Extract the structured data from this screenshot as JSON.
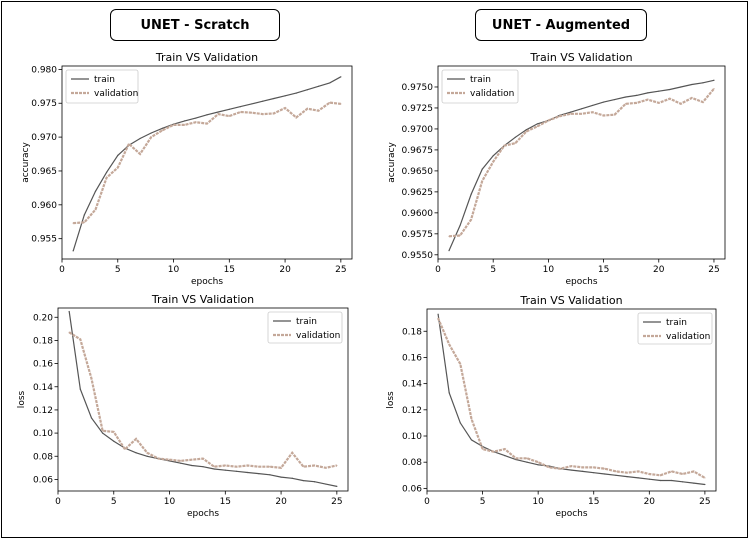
{
  "headers": {
    "left": "UNET - Scratch",
    "right": "UNET - Augmented"
  },
  "colors": {
    "train": "#555555",
    "validation": "#c4a899"
  },
  "chart_data": [
    {
      "id": "scratch-accuracy",
      "type": "line",
      "title": "Train VS Validation",
      "xlabel": "epochs",
      "ylabel": "accuracy",
      "xlim": [
        0,
        26
      ],
      "ylim": [
        0.952,
        0.9805
      ],
      "xticks": [
        0,
        5,
        10,
        15,
        20,
        25
      ],
      "yticks": [
        0.955,
        0.96,
        0.965,
        0.97,
        0.975,
        0.98
      ],
      "ytick_labels": [
        "0.955",
        "0.960",
        "0.965",
        "0.970",
        "0.975",
        "0.980"
      ],
      "legend": "top-left",
      "x": [
        1,
        2,
        3,
        4,
        5,
        6,
        7,
        8,
        9,
        10,
        11,
        12,
        13,
        14,
        15,
        16,
        17,
        18,
        19,
        20,
        21,
        22,
        23,
        24,
        25
      ],
      "series": [
        {
          "name": "train",
          "values": [
            0.9532,
            0.9585,
            0.962,
            0.9648,
            0.9673,
            0.9688,
            0.9698,
            0.9706,
            0.9713,
            0.9719,
            0.9724,
            0.9728,
            0.9733,
            0.9737,
            0.9741,
            0.9745,
            0.9749,
            0.9753,
            0.9757,
            0.9761,
            0.9765,
            0.977,
            0.9775,
            0.978,
            0.9789
          ]
        },
        {
          "name": "validation",
          "values": [
            0.9573,
            0.9574,
            0.9593,
            0.964,
            0.9655,
            0.969,
            0.9675,
            0.97,
            0.971,
            0.9718,
            0.9718,
            0.9722,
            0.972,
            0.9734,
            0.9731,
            0.9737,
            0.9736,
            0.9734,
            0.9735,
            0.9743,
            0.9729,
            0.9742,
            0.9739,
            0.9751,
            0.9749
          ]
        }
      ]
    },
    {
      "id": "augmented-accuracy",
      "type": "line",
      "title": "Train VS Validation",
      "xlabel": "epochs",
      "ylabel": "accuracy",
      "xlim": [
        0,
        26
      ],
      "ylim": [
        0.9545,
        0.9775
      ],
      "xticks": [
        0,
        5,
        10,
        15,
        20,
        25
      ],
      "yticks": [
        0.955,
        0.9575,
        0.96,
        0.9625,
        0.965,
        0.9675,
        0.97,
        0.9725,
        0.975
      ],
      "ytick_labels": [
        "0.9550",
        "0.9575",
        "0.9600",
        "0.9625",
        "0.9650",
        "0.9675",
        "0.9700",
        "0.9725",
        "0.9750"
      ],
      "legend": "top-left",
      "x": [
        1,
        2,
        3,
        4,
        5,
        6,
        7,
        8,
        9,
        10,
        11,
        12,
        13,
        14,
        15,
        16,
        17,
        18,
        19,
        20,
        21,
        22,
        23,
        24,
        25
      ],
      "series": [
        {
          "name": "train",
          "values": [
            0.9555,
            0.9585,
            0.9622,
            0.9652,
            0.9668,
            0.968,
            0.969,
            0.9699,
            0.9706,
            0.971,
            0.9716,
            0.972,
            0.9724,
            0.9728,
            0.9732,
            0.9735,
            0.9738,
            0.974,
            0.9743,
            0.9745,
            0.9747,
            0.975,
            0.9753,
            0.9755,
            0.9758
          ]
        },
        {
          "name": "validation",
          "values": [
            0.9572,
            0.9573,
            0.9592,
            0.9638,
            0.9661,
            0.968,
            0.9683,
            0.9697,
            0.9703,
            0.971,
            0.9715,
            0.9718,
            0.9718,
            0.972,
            0.9716,
            0.9717,
            0.973,
            0.9731,
            0.9735,
            0.9731,
            0.9736,
            0.973,
            0.9737,
            0.9732,
            0.9748
          ]
        }
      ]
    },
    {
      "id": "scratch-loss",
      "type": "line",
      "title": "Train VS Validation",
      "xlabel": "epochs",
      "ylabel": "loss",
      "xlim": [
        0,
        26
      ],
      "ylim": [
        0.05,
        0.208
      ],
      "xticks": [
        0,
        5,
        10,
        15,
        20,
        25
      ],
      "yticks": [
        0.06,
        0.08,
        0.1,
        0.12,
        0.14,
        0.16,
        0.18,
        0.2
      ],
      "ytick_labels": [
        "0.06",
        "0.08",
        "0.10",
        "0.12",
        "0.14",
        "0.16",
        "0.18",
        "0.20"
      ],
      "legend": "top-right",
      "x": [
        1,
        2,
        3,
        4,
        5,
        6,
        7,
        8,
        9,
        10,
        11,
        12,
        13,
        14,
        15,
        16,
        17,
        18,
        19,
        20,
        21,
        22,
        23,
        24,
        25
      ],
      "series": [
        {
          "name": "train",
          "values": [
            0.205,
            0.138,
            0.113,
            0.1,
            0.093,
            0.087,
            0.083,
            0.08,
            0.078,
            0.076,
            0.074,
            0.072,
            0.071,
            0.069,
            0.068,
            0.067,
            0.066,
            0.065,
            0.064,
            0.062,
            0.061,
            0.059,
            0.058,
            0.056,
            0.054
          ]
        },
        {
          "name": "validation",
          "values": [
            0.187,
            0.181,
            0.147,
            0.102,
            0.101,
            0.086,
            0.095,
            0.083,
            0.078,
            0.077,
            0.076,
            0.077,
            0.078,
            0.071,
            0.072,
            0.071,
            0.072,
            0.071,
            0.071,
            0.07,
            0.083,
            0.071,
            0.072,
            0.07,
            0.072
          ]
        }
      ]
    },
    {
      "id": "augmented-loss",
      "type": "line",
      "title": "Train VS Validation",
      "xlabel": "epochs",
      "ylabel": "loss",
      "xlim": [
        0,
        26
      ],
      "ylim": [
        0.058,
        0.197
      ],
      "xticks": [
        0,
        5,
        10,
        15,
        20,
        25
      ],
      "yticks": [
        0.06,
        0.08,
        0.1,
        0.12,
        0.14,
        0.16,
        0.18
      ],
      "ytick_labels": [
        "0.06",
        "0.08",
        "0.10",
        "0.12",
        "0.14",
        "0.16",
        "0.18"
      ],
      "legend": "top-right",
      "x": [
        1,
        2,
        3,
        4,
        5,
        6,
        7,
        8,
        9,
        10,
        11,
        12,
        13,
        14,
        15,
        16,
        17,
        18,
        19,
        20,
        21,
        22,
        23,
        24,
        25
      ],
      "series": [
        {
          "name": "train",
          "values": [
            0.193,
            0.133,
            0.11,
            0.097,
            0.092,
            0.088,
            0.085,
            0.082,
            0.08,
            0.078,
            0.077,
            0.075,
            0.074,
            0.073,
            0.072,
            0.071,
            0.07,
            0.069,
            0.068,
            0.067,
            0.066,
            0.066,
            0.065,
            0.064,
            0.063
          ]
        },
        {
          "name": "validation",
          "values": [
            0.19,
            0.17,
            0.155,
            0.113,
            0.09,
            0.088,
            0.09,
            0.083,
            0.083,
            0.08,
            0.076,
            0.075,
            0.077,
            0.076,
            0.076,
            0.075,
            0.073,
            0.072,
            0.073,
            0.071,
            0.07,
            0.073,
            0.071,
            0.073,
            0.068
          ]
        }
      ]
    }
  ]
}
